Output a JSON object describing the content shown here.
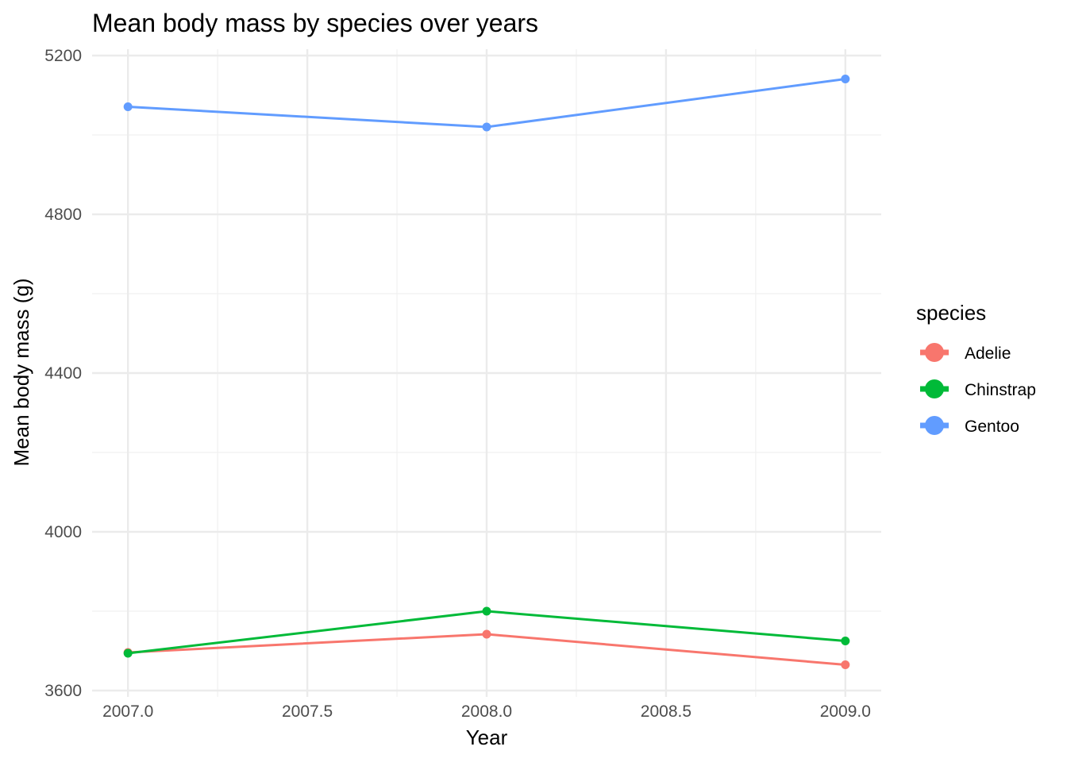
{
  "chart_data": {
    "type": "line",
    "title": "Mean body mass by species over years",
    "xlabel": "Year",
    "ylabel": "Mean body mass (g)",
    "x": [
      2007,
      2008,
      2009
    ],
    "xlim": [
      2006.9,
      2009.1
    ],
    "ylim": [
      3584,
      5216
    ],
    "xticks": [
      2007.0,
      2007.5,
      2008.0,
      2008.5,
      2009.0
    ],
    "xtick_labels": [
      "2007.0",
      "2007.5",
      "2008.0",
      "2008.5",
      "2009.0"
    ],
    "yticks": [
      3600,
      4000,
      4400,
      4800,
      5200
    ],
    "ytick_labels": [
      "3600",
      "4000",
      "4400",
      "4800",
      "5200"
    ],
    "grid": true,
    "legend": {
      "title": "species",
      "placement": "right"
    },
    "series": [
      {
        "name": "Adelie",
        "color": "#F8766D",
        "values": [
          3696,
          3742,
          3665
        ]
      },
      {
        "name": "Chinstrap",
        "color": "#00BA38",
        "values": [
          3694,
          3800,
          3725
        ]
      },
      {
        "name": "Gentoo",
        "color": "#619CFF",
        "values": [
          5071,
          5020,
          5141
        ]
      }
    ]
  }
}
